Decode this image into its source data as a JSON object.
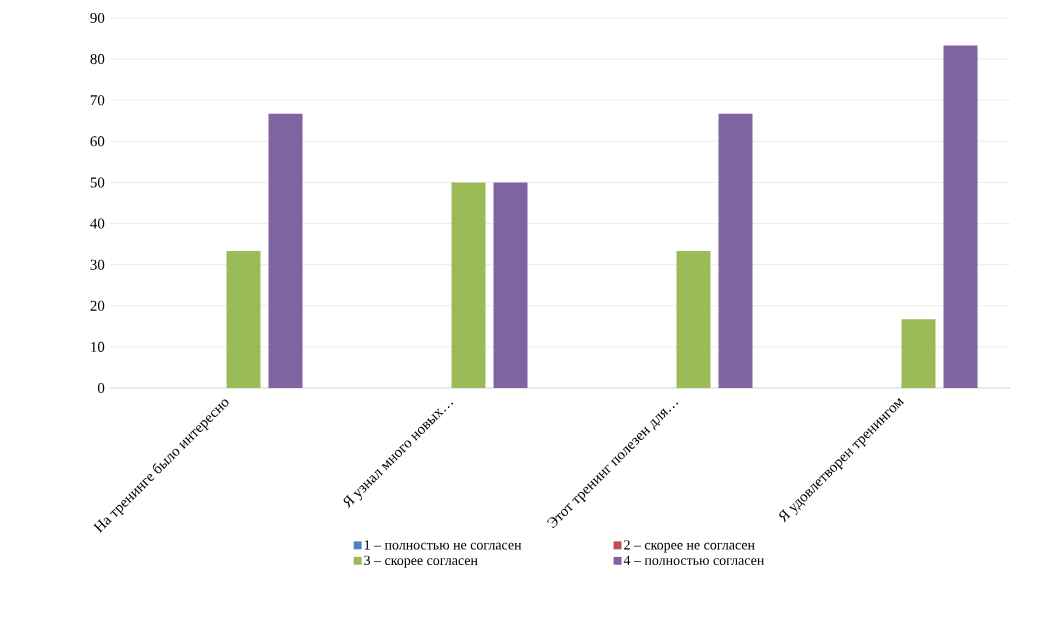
{
  "chart_data": {
    "type": "bar",
    "categories": [
      "На тренинге было интересно",
      "Я узнал много новых…",
      "Этот тренинг полезен для…",
      "Я удовлетворен тренингом"
    ],
    "series": [
      {
        "name": "1 – полностью не согласен",
        "color": "#4f81bd",
        "values": [
          0,
          0,
          0,
          0
        ]
      },
      {
        "name": "2 – скорее не согласен",
        "color": "#c0504d",
        "values": [
          0,
          0,
          0,
          0
        ]
      },
      {
        "name": "3 – скорее согласен",
        "color": "#9bbb59",
        "values": [
          33.3,
          50,
          33.3,
          16.7
        ]
      },
      {
        "name": "4 – полностью согласен",
        "color": "#8064a2",
        "values": [
          66.7,
          50,
          66.7,
          83.3
        ]
      }
    ],
    "ylim": [
      0,
      90
    ],
    "yticks": [
      0,
      10,
      20,
      30,
      40,
      50,
      60,
      70,
      80,
      90
    ],
    "grid": "y",
    "legend": "bottom"
  }
}
